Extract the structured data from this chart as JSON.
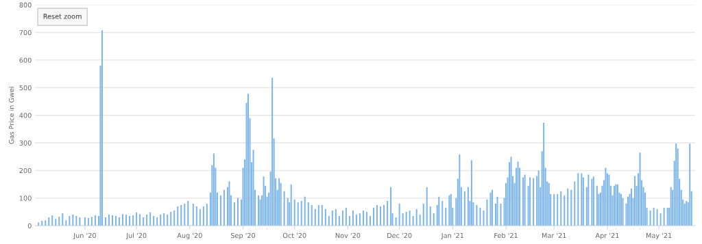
{
  "chart_data": {
    "type": "bar",
    "ylabel": "Gas Price in Gwei",
    "annotations": [
      "Reset zoom"
    ],
    "x": [
      "2020-05-05",
      "2020-05-07",
      "2020-05-09",
      "2020-05-11",
      "2020-05-13",
      "2020-05-15",
      "2020-05-17",
      "2020-05-19",
      "2020-05-21",
      "2020-05-23",
      "2020-05-25",
      "2020-05-27",
      "2020-05-29",
      "2020-06-01",
      "2020-06-03",
      "2020-06-05",
      "2020-06-07",
      "2020-06-09",
      "2020-06-10",
      "2020-06-11",
      "2020-06-13",
      "2020-06-15",
      "2020-06-17",
      "2020-06-19",
      "2020-06-21",
      "2020-06-23",
      "2020-06-25",
      "2020-06-27",
      "2020-06-29",
      "2020-07-01",
      "2020-07-03",
      "2020-07-05",
      "2020-07-07",
      "2020-07-09",
      "2020-07-11",
      "2020-07-13",
      "2020-07-15",
      "2020-07-17",
      "2020-07-19",
      "2020-07-21",
      "2020-07-23",
      "2020-07-25",
      "2020-07-27",
      "2020-07-29",
      "2020-07-31",
      "2020-08-03",
      "2020-08-05",
      "2020-08-07",
      "2020-08-09",
      "2020-08-11",
      "2020-08-13",
      "2020-08-14",
      "2020-08-15",
      "2020-08-16",
      "2020-08-17",
      "2020-08-19",
      "2020-08-21",
      "2020-08-23",
      "2020-08-24",
      "2020-08-25",
      "2020-08-27",
      "2020-08-29",
      "2020-08-31",
      "2020-09-01",
      "2020-09-02",
      "2020-09-03",
      "2020-09-04",
      "2020-09-05",
      "2020-09-06",
      "2020-09-07",
      "2020-09-08",
      "2020-09-10",
      "2020-09-11",
      "2020-09-12",
      "2020-09-13",
      "2020-09-14",
      "2020-09-15",
      "2020-09-16",
      "2020-09-17",
      "2020-09-18",
      "2020-09-19",
      "2020-09-20",
      "2020-09-21",
      "2020-09-22",
      "2020-09-23",
      "2020-09-25",
      "2020-09-27",
      "2020-09-28",
      "2020-09-29",
      "2020-10-01",
      "2020-10-03",
      "2020-10-05",
      "2020-10-07",
      "2020-10-09",
      "2020-10-11",
      "2020-10-13",
      "2020-10-15",
      "2020-10-17",
      "2020-10-19",
      "2020-10-21",
      "2020-10-23",
      "2020-10-25",
      "2020-10-27",
      "2020-10-29",
      "2020-10-31",
      "2020-11-02",
      "2020-11-04",
      "2020-11-06",
      "2020-11-08",
      "2020-11-10",
      "2020-11-12",
      "2020-11-14",
      "2020-11-16",
      "2020-11-18",
      "2020-11-20",
      "2020-11-22",
      "2020-11-24",
      "2020-11-26",
      "2020-11-27",
      "2020-11-29",
      "2020-12-01",
      "2020-12-03",
      "2020-12-05",
      "2020-12-07",
      "2020-12-09",
      "2020-12-11",
      "2020-12-13",
      "2020-12-15",
      "2020-12-17",
      "2020-12-19",
      "2020-12-21",
      "2020-12-23",
      "2020-12-24",
      "2020-12-26",
      "2020-12-28",
      "2020-12-30",
      "2020-12-31",
      "2021-01-01",
      "2021-01-03",
      "2021-01-04",
      "2021-01-05",
      "2021-01-06",
      "2021-01-08",
      "2021-01-10",
      "2021-01-11",
      "2021-01-12",
      "2021-01-13",
      "2021-01-15",
      "2021-01-17",
      "2021-01-19",
      "2021-01-21",
      "2021-01-23",
      "2021-01-24",
      "2021-01-26",
      "2021-01-27",
      "2021-01-29",
      "2021-01-31",
      "2021-02-01",
      "2021-02-02",
      "2021-02-03",
      "2021-02-04",
      "2021-02-05",
      "2021-02-06",
      "2021-02-07",
      "2021-02-08",
      "2021-02-09",
      "2021-02-11",
      "2021-02-12",
      "2021-02-14",
      "2021-02-15",
      "2021-02-17",
      "2021-02-19",
      "2021-02-20",
      "2021-02-21",
      "2021-02-22",
      "2021-02-23",
      "2021-02-24",
      "2021-02-25",
      "2021-02-26",
      "2021-02-27",
      "2021-03-01",
      "2021-03-03",
      "2021-03-05",
      "2021-03-07",
      "2021-03-09",
      "2021-03-11",
      "2021-03-13",
      "2021-03-15",
      "2021-03-17",
      "2021-03-18",
      "2021-03-20",
      "2021-03-21",
      "2021-03-23",
      "2021-03-24",
      "2021-03-26",
      "2021-03-27",
      "2021-03-28",
      "2021-03-29",
      "2021-03-30",
      "2021-03-31",
      "2021-04-01",
      "2021-04-02",
      "2021-04-03",
      "2021-04-04",
      "2021-04-05",
      "2021-04-06",
      "2021-04-07",
      "2021-04-08",
      "2021-04-09",
      "2021-04-10",
      "2021-04-12",
      "2021-04-13",
      "2021-04-14",
      "2021-04-15",
      "2021-04-16",
      "2021-04-17",
      "2021-04-18",
      "2021-04-19",
      "2021-04-20",
      "2021-04-21",
      "2021-04-22",
      "2021-04-23",
      "2021-04-24",
      "2021-04-26",
      "2021-04-28",
      "2021-04-30",
      "2021-05-02",
      "2021-05-04",
      "2021-05-06",
      "2021-05-07",
      "2021-05-08",
      "2021-05-09",
      "2021-05-10",
      "2021-05-11",
      "2021-05-12",
      "2021-05-13",
      "2021-05-14",
      "2021-05-15",
      "2021-05-16",
      "2021-05-17",
      "2021-05-18",
      "2021-05-19",
      "2021-05-20"
    ],
    "values": [
      12,
      18,
      20,
      30,
      38,
      25,
      33,
      45,
      20,
      35,
      40,
      35,
      30,
      30,
      28,
      32,
      38,
      35,
      580,
      708,
      30,
      40,
      38,
      35,
      30,
      42,
      40,
      35,
      38,
      48,
      42,
      30,
      40,
      48,
      35,
      30,
      40,
      45,
      40,
      50,
      55,
      70,
      75,
      80,
      90,
      80,
      70,
      60,
      70,
      80,
      120,
      220,
      262,
      210,
      120,
      110,
      130,
      140,
      160,
      110,
      85,
      100,
      95,
      210,
      240,
      445,
      478,
      390,
      230,
      275,
      130,
      110,
      95,
      110,
      178,
      145,
      105,
      120,
      197,
      536,
      316,
      172,
      130,
      172,
      155,
      125,
      100,
      85,
      150,
      95,
      85,
      90,
      105,
      85,
      75,
      60,
      75,
      75,
      60,
      35,
      55,
      60,
      35,
      55,
      65,
      35,
      55,
      40,
      45,
      55,
      50,
      35,
      65,
      75,
      70,
      75,
      90,
      140,
      45,
      30,
      80,
      45,
      50,
      55,
      35,
      60,
      40,
      80,
      140,
      70,
      45,
      75,
      105,
      90,
      65,
      110,
      115,
      65,
      100,
      170,
      258,
      140,
      125,
      140,
      90,
      237,
      85,
      75,
      65,
      55,
      95,
      120,
      130,
      80,
      105,
      80,
      100,
      155,
      175,
      230,
      250,
      180,
      155,
      210,
      232,
      210,
      175,
      185,
      145,
      175,
      172,
      180,
      200,
      140,
      270,
      373,
      210,
      160,
      155,
      115,
      115,
      115,
      125,
      110,
      135,
      130,
      160,
      190,
      190,
      175,
      140,
      185,
      170,
      178,
      145,
      115,
      120,
      145,
      165,
      210,
      190,
      185,
      145,
      110,
      145,
      150,
      150,
      120,
      115,
      100,
      80,
      105,
      115,
      135,
      100,
      180,
      145,
      190,
      265,
      165,
      140,
      120,
      65,
      55,
      65,
      60,
      45,
      65,
      65,
      65,
      140,
      130,
      235,
      298,
      280,
      170,
      130,
      95,
      80,
      90,
      85,
      297,
      125
    ],
    "color": "#7cb5ec",
    "ylim": [
      0,
      800
    ],
    "yticks": [
      0,
      100,
      200,
      300,
      400,
      500,
      600,
      700,
      800
    ],
    "xlim": [
      "2020-05-03",
      "2021-05-22"
    ],
    "xticks": [
      {
        "value": "2020-06-01",
        "label": "Jun '20"
      },
      {
        "value": "2020-07-01",
        "label": "Jul '20"
      },
      {
        "value": "2020-08-01",
        "label": "Aug '20"
      },
      {
        "value": "2020-09-01",
        "label": "Sep '20"
      },
      {
        "value": "2020-10-01",
        "label": "Oct '20"
      },
      {
        "value": "2020-11-01",
        "label": "Nov '20"
      },
      {
        "value": "2020-12-01",
        "label": "Dec '20"
      },
      {
        "value": "2021-01-01",
        "label": "Jan '21"
      },
      {
        "value": "2021-02-01",
        "label": "Feb '21"
      },
      {
        "value": "2021-03-01",
        "label": "Mar '21"
      },
      {
        "value": "2021-04-01",
        "label": "Apr '21"
      },
      {
        "value": "2021-05-01",
        "label": "May '21"
      }
    ],
    "grid": "y"
  }
}
